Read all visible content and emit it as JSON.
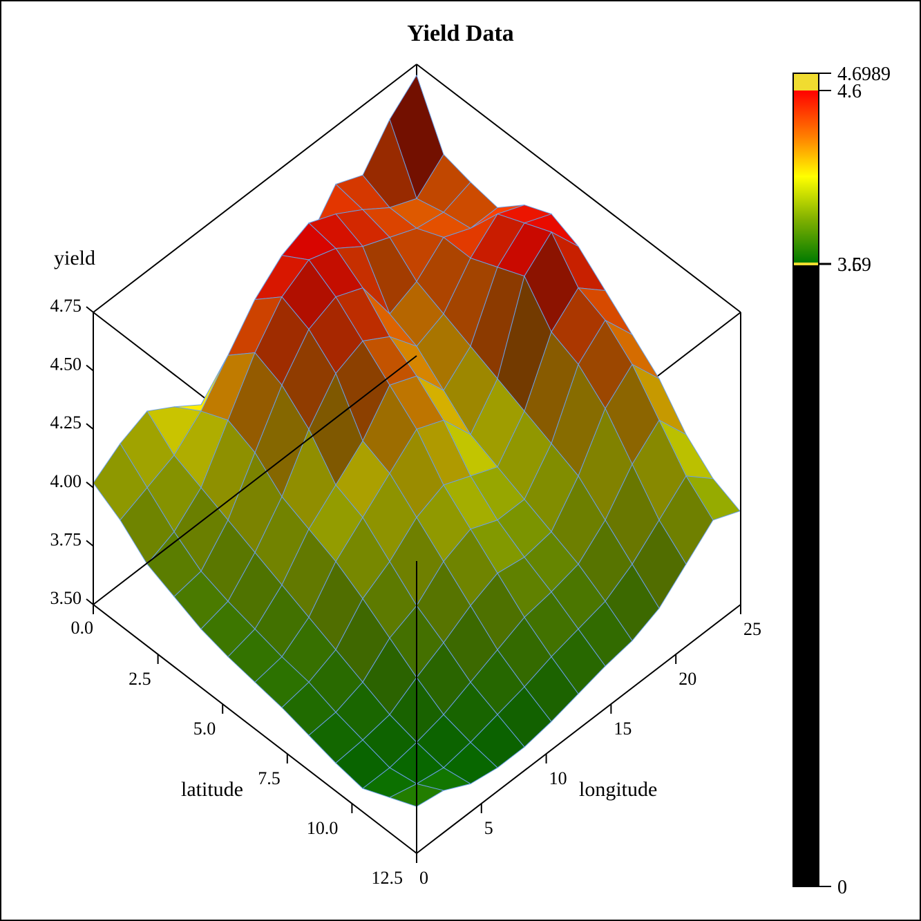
{
  "chart_data": {
    "type": "surface3d",
    "title": "Yield Data",
    "axes": {
      "x": {
        "label": "latitude",
        "ticks": [
          "0.0",
          "2.5",
          "5.0",
          "7.5",
          "10.0",
          "12.5"
        ],
        "range": [
          0,
          12.5
        ]
      },
      "y": {
        "label": "longitude",
        "ticks": [
          "0",
          "5",
          "10",
          "15",
          "20",
          "25"
        ],
        "range": [
          0,
          25
        ]
      },
      "z": {
        "label": "yield",
        "ticks": [
          "3.50",
          "3.75",
          "4.00",
          "4.25",
          "4.50",
          "4.75"
        ],
        "range": [
          3.5,
          4.75
        ]
      }
    },
    "colorbar": {
      "labels": [
        "4.6989",
        "4.6",
        "3.6",
        "3.59",
        "0"
      ],
      "max": 4.6989,
      "upper_clip": 4.6,
      "lower_clip": 3.59,
      "min": 0,
      "gradient": [
        "#ff0000",
        "#ff7f00",
        "#ffff00",
        "#80b000",
        "#007a00"
      ],
      "above_color": "#f0dc30",
      "below_color": "#000000",
      "clip_line_color": "#f0dc30"
    },
    "mesh_color": "#6aa0e8",
    "grid_rows_lat": [
      0,
      1,
      2,
      3,
      4,
      5,
      6,
      7,
      8,
      9,
      10,
      11,
      12
    ],
    "grid_cols_lon": [
      0,
      2,
      4,
      6,
      8,
      10,
      12,
      14,
      16,
      18,
      20,
      22,
      24
    ],
    "z_values": [
      [
        4.02,
        4.1,
        4.15,
        4.08,
        4.0,
        3.95,
        3.9,
        4.05,
        4.35,
        4.5,
        4.45,
        4.6,
        4.7
      ],
      [
        3.95,
        4.0,
        4.05,
        4.15,
        4.3,
        4.45,
        4.55,
        4.6,
        4.55,
        4.48,
        4.4,
        4.35,
        4.45
      ],
      [
        3.85,
        3.9,
        4.0,
        4.2,
        4.4,
        4.55,
        4.62,
        4.58,
        4.5,
        4.45,
        4.4,
        4.38,
        4.42
      ],
      [
        3.8,
        3.82,
        3.95,
        4.15,
        4.35,
        4.5,
        4.55,
        4.5,
        4.3,
        4.35,
        4.45,
        4.4,
        4.4
      ],
      [
        3.75,
        3.78,
        3.9,
        4.05,
        4.25,
        4.4,
        4.45,
        4.38,
        4.25,
        4.3,
        4.45,
        4.55,
        4.5
      ],
      [
        3.72,
        3.75,
        3.85,
        4.0,
        4.1,
        4.2,
        4.35,
        4.3,
        4.15,
        4.25,
        4.5,
        4.6,
        4.55
      ],
      [
        3.7,
        3.72,
        3.8,
        3.95,
        4.05,
        4.15,
        4.25,
        4.2,
        4.05,
        4.2,
        4.55,
        4.65,
        4.5
      ],
      [
        3.68,
        3.7,
        3.75,
        3.88,
        3.95,
        4.05,
        4.1,
        4.05,
        4.0,
        4.15,
        4.4,
        4.5,
        4.4
      ],
      [
        3.65,
        3.66,
        3.7,
        3.8,
        3.85,
        3.95,
        4.0,
        3.95,
        3.95,
        4.1,
        4.35,
        4.45,
        4.3
      ],
      [
        3.62,
        3.63,
        3.65,
        3.72,
        3.78,
        3.85,
        3.9,
        3.88,
        3.9,
        4.05,
        4.25,
        4.35,
        4.2
      ],
      [
        3.6,
        3.6,
        3.62,
        3.65,
        3.7,
        3.75,
        3.8,
        3.82,
        3.85,
        3.95,
        4.1,
        4.2,
        4.05
      ],
      [
        3.65,
        3.62,
        3.6,
        3.62,
        3.65,
        3.68,
        3.72,
        3.75,
        3.78,
        3.85,
        3.95,
        4.05,
        3.95
      ],
      [
        3.7,
        3.68,
        3.62,
        3.6,
        3.6,
        3.62,
        3.65,
        3.68,
        3.7,
        3.75,
        3.85,
        3.95,
        3.9
      ]
    ]
  }
}
